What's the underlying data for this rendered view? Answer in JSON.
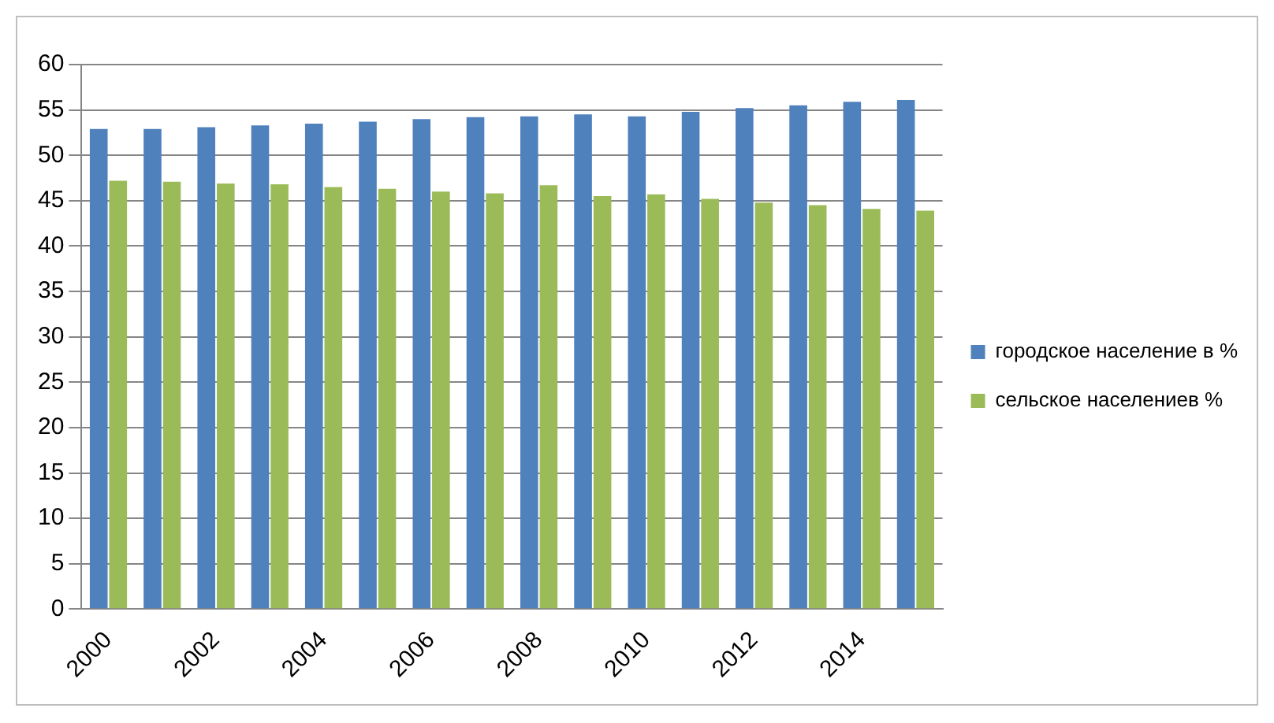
{
  "chart_data": {
    "type": "bar",
    "categories": [
      "2000",
      null,
      "2002",
      null,
      "2004",
      null,
      "2006",
      null,
      "2008",
      null,
      "2010",
      null,
      "2012",
      null,
      "2014",
      null
    ],
    "series": [
      {
        "name": "городское население в %",
        "color": "#4f81bd",
        "values": [
          52.9,
          52.9,
          53.1,
          53.3,
          53.5,
          53.7,
          54.0,
          54.2,
          54.3,
          54.5,
          54.3,
          54.8,
          55.2,
          55.5,
          55.9,
          56.1
        ]
      },
      {
        "name": "сельское населениев %",
        "color": "#9bbb59",
        "values": [
          47.2,
          47.1,
          46.9,
          46.8,
          46.5,
          46.3,
          46.0,
          45.8,
          46.7,
          45.5,
          45.7,
          45.2,
          44.8,
          44.5,
          44.1,
          43.9
        ]
      }
    ],
    "ylim": [
      0,
      60
    ],
    "yticks": [
      0,
      5,
      10,
      15,
      20,
      25,
      30,
      35,
      40,
      45,
      50,
      55,
      60
    ],
    "grid": "y",
    "legend": "right"
  }
}
